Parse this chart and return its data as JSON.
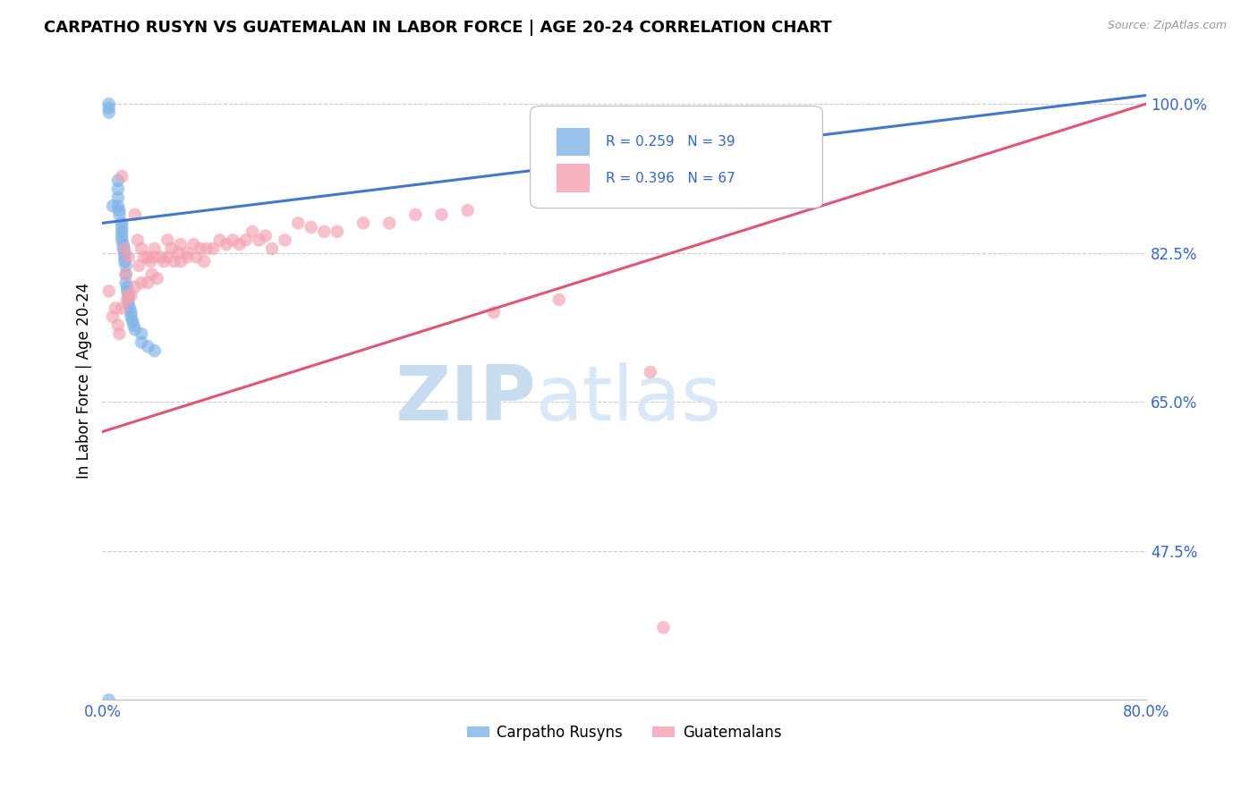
{
  "title": "CARPATHO RUSYN VS GUATEMALAN IN LABOR FORCE | AGE 20-24 CORRELATION CHART",
  "source_text": "Source: ZipAtlas.com",
  "ylabel": "In Labor Force | Age 20-24",
  "xlim": [
    0.0,
    0.8
  ],
  "ylim": [
    0.3,
    1.05
  ],
  "xticks": [
    0.0,
    0.1,
    0.2,
    0.3,
    0.4,
    0.5,
    0.6,
    0.7,
    0.8
  ],
  "xticklabels": [
    "0.0%",
    "",
    "",
    "",
    "",
    "",
    "",
    "",
    "80.0%"
  ],
  "yticks": [
    0.475,
    0.65,
    0.825,
    1.0
  ],
  "yticklabels": [
    "47.5%",
    "65.0%",
    "82.5%",
    "100.0%"
  ],
  "blue_color": "#7EB3E8",
  "pink_color": "#F4A0B0",
  "trendline_blue": "#4477CC",
  "trendline_pink": "#E05575",
  "legend_R_blue": "R = 0.259",
  "legend_N_blue": "N = 39",
  "legend_R_pink": "R = 0.396",
  "legend_N_pink": "N = 67",
  "watermark_zip": "ZIP",
  "watermark_atlas": "atlas",
  "blue_trend_x0": 0.0,
  "blue_trend_y0": 0.86,
  "blue_trend_x1": 0.8,
  "blue_trend_y1": 1.01,
  "pink_trend_x0": 0.0,
  "pink_trend_y0": 0.615,
  "pink_trend_x1": 0.8,
  "pink_trend_y1": 1.0,
  "blue_points_x": [
    0.005,
    0.005,
    0.005,
    0.008,
    0.012,
    0.012,
    0.012,
    0.012,
    0.013,
    0.013,
    0.015,
    0.015,
    0.015,
    0.015,
    0.015,
    0.016,
    0.016,
    0.017,
    0.017,
    0.017,
    0.018,
    0.018,
    0.018,
    0.019,
    0.019,
    0.02,
    0.02,
    0.02,
    0.021,
    0.022,
    0.022,
    0.023,
    0.024,
    0.025,
    0.03,
    0.03,
    0.035,
    0.04,
    0.005
  ],
  "blue_points_y": [
    1.0,
    0.995,
    0.99,
    0.88,
    0.91,
    0.9,
    0.89,
    0.88,
    0.875,
    0.87,
    0.86,
    0.855,
    0.85,
    0.845,
    0.84,
    0.835,
    0.83,
    0.825,
    0.82,
    0.815,
    0.81,
    0.8,
    0.79,
    0.785,
    0.78,
    0.775,
    0.77,
    0.765,
    0.76,
    0.755,
    0.75,
    0.745,
    0.74,
    0.735,
    0.73,
    0.72,
    0.715,
    0.71,
    0.3
  ],
  "pink_points_x": [
    0.005,
    0.008,
    0.01,
    0.012,
    0.013,
    0.015,
    0.015,
    0.017,
    0.018,
    0.019,
    0.02,
    0.02,
    0.022,
    0.025,
    0.025,
    0.027,
    0.028,
    0.03,
    0.03,
    0.032,
    0.035,
    0.035,
    0.037,
    0.038,
    0.04,
    0.04,
    0.042,
    0.045,
    0.047,
    0.05,
    0.05,
    0.053,
    0.055,
    0.058,
    0.06,
    0.06,
    0.065,
    0.065,
    0.07,
    0.072,
    0.075,
    0.078,
    0.08,
    0.085,
    0.09,
    0.095,
    0.1,
    0.105,
    0.11,
    0.115,
    0.12,
    0.125,
    0.13,
    0.14,
    0.15,
    0.16,
    0.17,
    0.18,
    0.2,
    0.22,
    0.24,
    0.26,
    0.28,
    0.3,
    0.35,
    0.42,
    0.43
  ],
  "pink_points_y": [
    0.78,
    0.75,
    0.76,
    0.74,
    0.73,
    0.915,
    0.76,
    0.83,
    0.8,
    0.77,
    0.82,
    0.775,
    0.775,
    0.87,
    0.785,
    0.84,
    0.81,
    0.83,
    0.79,
    0.82,
    0.82,
    0.79,
    0.815,
    0.8,
    0.83,
    0.82,
    0.795,
    0.82,
    0.815,
    0.84,
    0.82,
    0.83,
    0.815,
    0.825,
    0.835,
    0.815,
    0.825,
    0.82,
    0.835,
    0.82,
    0.83,
    0.815,
    0.83,
    0.83,
    0.84,
    0.835,
    0.84,
    0.835,
    0.84,
    0.85,
    0.84,
    0.845,
    0.83,
    0.84,
    0.86,
    0.855,
    0.85,
    0.85,
    0.86,
    0.86,
    0.87,
    0.87,
    0.875,
    0.755,
    0.77,
    0.685,
    0.385
  ]
}
